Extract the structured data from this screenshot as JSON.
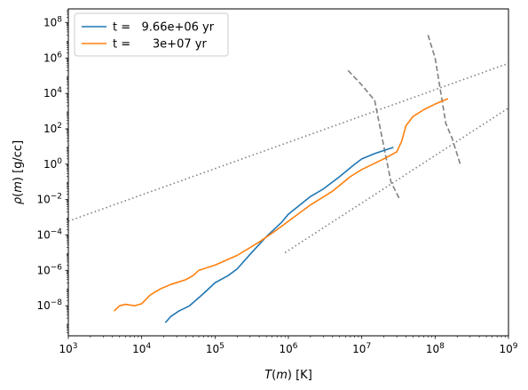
{
  "chart_data": {
    "type": "line",
    "title": "",
    "xlabel": "T(m) [K]",
    "ylabel": "ρ(m) [g/cc]",
    "x_scale": "log",
    "y_scale": "log",
    "xlim": [
      1000,
      1000000000
    ],
    "ylim": [
      2e-10,
      600000000.0
    ],
    "grid": false,
    "legend_position": "top-left",
    "x_ticks": [
      {
        "value": 1000,
        "base": "10",
        "exp": "3"
      },
      {
        "value": 10000,
        "base": "10",
        "exp": "4"
      },
      {
        "value": 100000,
        "base": "10",
        "exp": "5"
      },
      {
        "value": 1000000,
        "base": "10",
        "exp": "6"
      },
      {
        "value": 10000000,
        "base": "10",
        "exp": "7"
      },
      {
        "value": 100000000,
        "base": "10",
        "exp": "8"
      },
      {
        "value": 1000000000,
        "base": "10",
        "exp": "9"
      }
    ],
    "y_ticks": [
      {
        "value": 1e-08,
        "base": "10",
        "exp": "−8"
      },
      {
        "value": 1e-06,
        "base": "10",
        "exp": "−6"
      },
      {
        "value": 0.0001,
        "base": "10",
        "exp": "−4"
      },
      {
        "value": 0.01,
        "base": "10",
        "exp": "−2"
      },
      {
        "value": 1,
        "base": "10",
        "exp": "0"
      },
      {
        "value": 100,
        "base": "10",
        "exp": "2"
      },
      {
        "value": 10000,
        "base": "10",
        "exp": "4"
      },
      {
        "value": 1000000,
        "base": "10",
        "exp": "6"
      },
      {
        "value": 100000000,
        "base": "10",
        "exp": "8"
      }
    ],
    "series": [
      {
        "name": "t =   9.66e+06 yr",
        "color": "#1f77b4",
        "style": "solid",
        "points": [
          [
            21000,
            1.1e-09
          ],
          [
            25000,
            2.5e-09
          ],
          [
            32000,
            5e-09
          ],
          [
            45000,
            1e-08
          ],
          [
            70000,
            5e-08
          ],
          [
            100000,
            2e-07
          ],
          [
            150000,
            5e-07
          ],
          [
            200000,
            1.2e-06
          ],
          [
            300000,
            8e-06
          ],
          [
            500000,
            8e-05
          ],
          [
            800000,
            0.0005
          ],
          [
            1000000,
            0.0015
          ],
          [
            2000000,
            0.015
          ],
          [
            3000000,
            0.04
          ],
          [
            5000000,
            0.2
          ],
          [
            8000000,
            1
          ],
          [
            10000000,
            2
          ],
          [
            15000000,
            4
          ],
          [
            20000000,
            6
          ],
          [
            27000000,
            9
          ]
        ]
      },
      {
        "name": "t =      3e+07 yr",
        "color": "#ff7f0e",
        "style": "solid",
        "points": [
          [
            4200,
            5e-09
          ],
          [
            5000,
            1e-08
          ],
          [
            6000,
            1.2e-08
          ],
          [
            8000,
            1e-08
          ],
          [
            10000,
            1.3e-08
          ],
          [
            13000,
            4e-08
          ],
          [
            18000,
            9e-08
          ],
          [
            25000,
            1.6e-07
          ],
          [
            40000,
            3e-07
          ],
          [
            50000,
            5e-07
          ],
          [
            60000,
            1e-06
          ],
          [
            100000,
            2e-06
          ],
          [
            200000,
            7e-06
          ],
          [
            400000,
            4e-05
          ],
          [
            700000,
            0.0002
          ],
          [
            1000000,
            0.0006
          ],
          [
            2000000,
            0.005
          ],
          [
            4000000,
            0.03
          ],
          [
            7000000,
            0.2
          ],
          [
            10000000,
            0.5
          ],
          [
            20000000,
            2
          ],
          [
            30000000,
            5
          ],
          [
            35000000,
            20
          ],
          [
            40000000,
            150
          ],
          [
            50000000,
            500
          ],
          [
            70000000,
            1200
          ],
          [
            100000000,
            2500
          ],
          [
            150000000,
            5000
          ]
        ]
      }
    ],
    "reference_lines": [
      {
        "style": "dotted",
        "color": "#808080",
        "points": [
          [
            1000,
            0.0006
          ],
          [
            1000000000,
            500000.0
          ]
        ]
      },
      {
        "style": "dotted",
        "color": "#808080",
        "points": [
          [
            900000,
            1e-05
          ],
          [
            1000000000,
            1500.0
          ]
        ]
      },
      {
        "style": "dashed",
        "color": "#808080",
        "points": [
          [
            6500000,
            200000.0
          ],
          [
            10000000,
            30000.0
          ],
          [
            15000000,
            4000.0
          ],
          [
            20000000,
            10
          ],
          [
            25000000,
            0.1
          ],
          [
            33000000,
            0.01
          ]
        ]
      },
      {
        "style": "dashed",
        "color": "#808080",
        "points": [
          [
            80000000,
            20000000.0
          ],
          [
            100000000,
            1000000.0
          ],
          [
            120000000,
            10000.0
          ],
          [
            140000000,
            200
          ],
          [
            170000000,
            30
          ],
          [
            220000000,
            1
          ]
        ]
      }
    ]
  }
}
